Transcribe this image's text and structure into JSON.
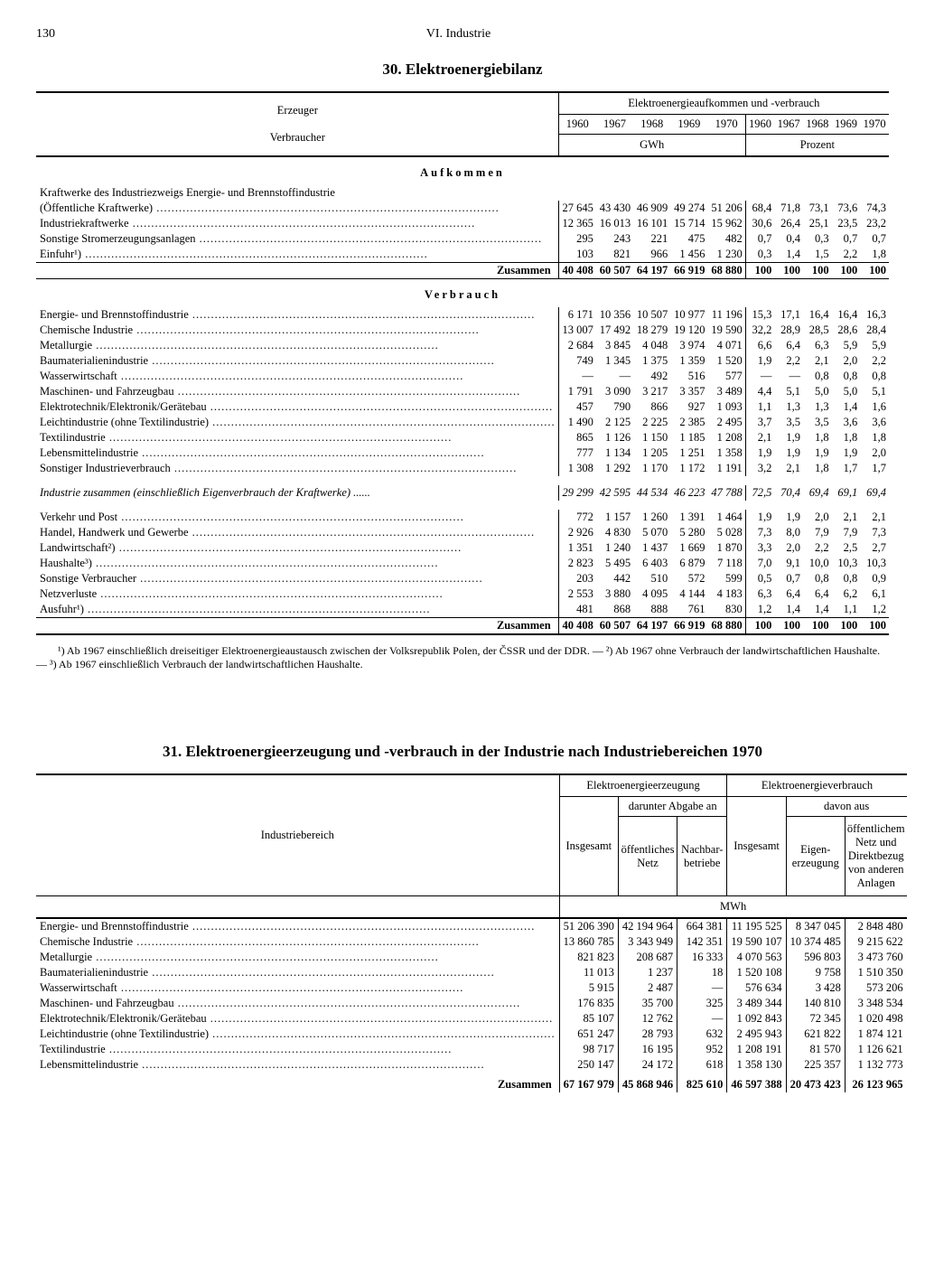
{
  "page_number": "130",
  "chapter": "VI. Industrie",
  "table30": {
    "title": "30. Elektroenergiebilanz",
    "superheader": "Elektroenergieaufkommen und -verbrauch",
    "stub_header_1": "Erzeuger",
    "stub_header_2": "Verbraucher",
    "years": [
      "1960",
      "1967",
      "1968",
      "1969",
      "1970"
    ],
    "unit_left": "GWh",
    "unit_right": "Prozent",
    "section_aufkommen": "Aufkommen",
    "intro_row_label": "Kraftwerke des Industriezweigs Energie- und Brennstoffindustrie",
    "aufkommen_rows": [
      {
        "label": "(Öffentliche Kraftwerke)",
        "gwh": [
          "27 645",
          "43 430",
          "46 909",
          "49 274",
          "51 206"
        ],
        "pct": [
          "68,4",
          "71,8",
          "73,1",
          "73,6",
          "74,3"
        ]
      },
      {
        "label": "Industriekraftwerke",
        "gwh": [
          "12 365",
          "16 013",
          "16 101",
          "15 714",
          "15 962"
        ],
        "pct": [
          "30,6",
          "26,4",
          "25,1",
          "23,5",
          "23,2"
        ]
      },
      {
        "label": "Sonstige Stromerzeugungsanlagen",
        "gwh": [
          "295",
          "243",
          "221",
          "475",
          "482"
        ],
        "pct": [
          "0,7",
          "0,4",
          "0,3",
          "0,7",
          "0,7"
        ]
      },
      {
        "label": "Einfuhr¹)",
        "gwh": [
          "103",
          "821",
          "966",
          "1 456",
          "1 230"
        ],
        "pct": [
          "0,3",
          "1,4",
          "1,5",
          "2,2",
          "1,8"
        ]
      }
    ],
    "aufkommen_sum_label": "Zusammen",
    "aufkommen_sum": {
      "gwh": [
        "40 408",
        "60 507",
        "64 197",
        "66 919",
        "68 880"
      ],
      "pct": [
        "100",
        "100",
        "100",
        "100",
        "100"
      ]
    },
    "section_verbrauch": "Verbrauch",
    "verbrauch_rows_1": [
      {
        "label": "Energie- und Brennstoffindustrie",
        "gwh": [
          "6 171",
          "10 356",
          "10 507",
          "10 977",
          "11 196"
        ],
        "pct": [
          "15,3",
          "17,1",
          "16,4",
          "16,4",
          "16,3"
        ]
      },
      {
        "label": "Chemische Industrie",
        "gwh": [
          "13 007",
          "17 492",
          "18 279",
          "19 120",
          "19 590"
        ],
        "pct": [
          "32,2",
          "28,9",
          "28,5",
          "28,6",
          "28,4"
        ]
      },
      {
        "label": "Metallurgie",
        "gwh": [
          "2 684",
          "3 845",
          "4 048",
          "3 974",
          "4 071"
        ],
        "pct": [
          "6,6",
          "6,4",
          "6,3",
          "5,9",
          "5,9"
        ]
      },
      {
        "label": "Baumaterialienindustrie",
        "gwh": [
          "749",
          "1 345",
          "1 375",
          "1 359",
          "1 520"
        ],
        "pct": [
          "1,9",
          "2,2",
          "2,1",
          "2,0",
          "2,2"
        ]
      },
      {
        "label": "Wasserwirtschaft",
        "gwh": [
          "—",
          "—",
          "492",
          "516",
          "577"
        ],
        "pct": [
          "—",
          "—",
          "0,8",
          "0,8",
          "0,8"
        ]
      },
      {
        "label": "Maschinen- und Fahrzeugbau",
        "gwh": [
          "1 791",
          "3 090",
          "3 217",
          "3 357",
          "3 489"
        ],
        "pct": [
          "4,4",
          "5,1",
          "5,0",
          "5,0",
          "5,1"
        ]
      },
      {
        "label": "Elektrotechnik/Elektronik/Gerätebau",
        "gwh": [
          "457",
          "790",
          "866",
          "927",
          "1 093"
        ],
        "pct": [
          "1,1",
          "1,3",
          "1,3",
          "1,4",
          "1,6"
        ]
      },
      {
        "label": "Leichtindustrie (ohne Textilindustrie)",
        "gwh": [
          "1 490",
          "2 125",
          "2 225",
          "2 385",
          "2 495"
        ],
        "pct": [
          "3,7",
          "3,5",
          "3,5",
          "3,6",
          "3,6"
        ]
      },
      {
        "label": "Textilindustrie",
        "gwh": [
          "865",
          "1 126",
          "1 150",
          "1 185",
          "1 208"
        ],
        "pct": [
          "2,1",
          "1,9",
          "1,8",
          "1,8",
          "1,8"
        ]
      },
      {
        "label": "Lebensmittelindustrie",
        "gwh": [
          "777",
          "1 134",
          "1 205",
          "1 251",
          "1 358"
        ],
        "pct": [
          "1,9",
          "1,9",
          "1,9",
          "1,9",
          "2,0"
        ]
      },
      {
        "label": "Sonstiger Industrieverbrauch",
        "gwh": [
          "1 308",
          "1 292",
          "1 170",
          "1 172",
          "1 191"
        ],
        "pct": [
          "3,2",
          "2,1",
          "1,8",
          "1,7",
          "1,7"
        ]
      }
    ],
    "industrie_sum_label": "Industrie zusammen (einschließlich Eigenverbrauch der Kraftwerke)",
    "industrie_sum": {
      "gwh": [
        "29 299",
        "42 595",
        "44 534",
        "46 223",
        "47 788"
      ],
      "pct": [
        "72,5",
        "70,4",
        "69,4",
        "69,1",
        "69,4"
      ]
    },
    "verbrauch_rows_2": [
      {
        "label": "Verkehr und Post",
        "gwh": [
          "772",
          "1 157",
          "1 260",
          "1 391",
          "1 464"
        ],
        "pct": [
          "1,9",
          "1,9",
          "2,0",
          "2,1",
          "2,1"
        ]
      },
      {
        "label": "Handel, Handwerk und Gewerbe",
        "gwh": [
          "2 926",
          "4 830",
          "5 070",
          "5 280",
          "5 028"
        ],
        "pct": [
          "7,3",
          "8,0",
          "7,9",
          "7,9",
          "7,3"
        ]
      },
      {
        "label": "Landwirtschaft²)",
        "gwh": [
          "1 351",
          "1 240",
          "1 437",
          "1 669",
          "1 870"
        ],
        "pct": [
          "3,3",
          "2,0",
          "2,2",
          "2,5",
          "2,7"
        ]
      },
      {
        "label": "Haushalte³)",
        "gwh": [
          "2 823",
          "5 495",
          "6 403",
          "6 879",
          "7 118"
        ],
        "pct": [
          "7,0",
          "9,1",
          "10,0",
          "10,3",
          "10,3"
        ]
      },
      {
        "label": "Sonstige Verbraucher",
        "gwh": [
          "203",
          "442",
          "510",
          "572",
          "599"
        ],
        "pct": [
          "0,5",
          "0,7",
          "0,8",
          "0,8",
          "0,9"
        ]
      },
      {
        "label": "Netzverluste",
        "gwh": [
          "2 553",
          "3 880",
          "4 095",
          "4 144",
          "4 183"
        ],
        "pct": [
          "6,3",
          "6,4",
          "6,4",
          "6,2",
          "6,1"
        ]
      },
      {
        "label": "Ausfuhr¹)",
        "gwh": [
          "481",
          "868",
          "888",
          "761",
          "830"
        ],
        "pct": [
          "1,2",
          "1,4",
          "1,4",
          "1,1",
          "1,2"
        ]
      }
    ],
    "verbrauch_sum_label": "Zusammen",
    "verbrauch_sum": {
      "gwh": [
        "40 408",
        "60 507",
        "64 197",
        "66 919",
        "68 880"
      ],
      "pct": [
        "100",
        "100",
        "100",
        "100",
        "100"
      ]
    }
  },
  "footnotes": "¹) Ab 1967 einschließlich dreiseitiger Elektroenergieaustausch zwischen der Volksrepublik Polen, der ČSSR und der DDR. — ²) Ab 1967 ohne Verbrauch der landwirtschaftlichen Haushalte. — ³) Ab 1967 einschließlich Verbrauch der landwirtschaftlichen Haushalte.",
  "table31": {
    "title": "31. Elektroenergieerzeugung und -verbrauch in der Industrie nach Industriebereichen 1970",
    "h_erzeugung": "Elektroenergieerzeugung",
    "h_verbrauch": "Elektroenergieverbrauch",
    "h_darunter": "darunter Abgabe an",
    "h_davon": "davon aus",
    "stub_label": "Industriebereich",
    "h_insgesamt": "Insgesamt",
    "h_oeff_netz": "öffentliches Netz",
    "h_nachbar": "Nachbar-\nbetriebe",
    "h_eigen": "Eigen-\nerzeugung",
    "h_oeff_direkt": "öffentlichem Netz und Direktbezug von anderen Anlagen",
    "unit": "MWh",
    "rows": [
      {
        "label": "Energie- und Brennstoffindustrie",
        "v": [
          "51 206 390",
          "42 194 964",
          "664 381",
          "11 195 525",
          "8 347 045",
          "2 848 480"
        ]
      },
      {
        "label": "Chemische Industrie",
        "v": [
          "13 860 785",
          "3 343 949",
          "142 351",
          "19 590 107",
          "10 374 485",
          "9 215 622"
        ]
      },
      {
        "label": "Metallurgie",
        "v": [
          "821 823",
          "208 687",
          "16 333",
          "4 070 563",
          "596 803",
          "3 473 760"
        ]
      },
      {
        "label": "Baumaterialienindustrie",
        "v": [
          "11 013",
          "1 237",
          "18",
          "1 520 108",
          "9 758",
          "1 510 350"
        ]
      },
      {
        "label": "Wasserwirtschaft",
        "v": [
          "5 915",
          "2 487",
          "—",
          "576 634",
          "3 428",
          "573 206"
        ]
      },
      {
        "label": "Maschinen- und Fahrzeugbau",
        "v": [
          "176 835",
          "35 700",
          "325",
          "3 489 344",
          "140 810",
          "3 348 534"
        ]
      },
      {
        "label": "Elektrotechnik/Elektronik/Gerätebau",
        "v": [
          "85 107",
          "12 762",
          "—",
          "1 092 843",
          "72 345",
          "1 020 498"
        ]
      },
      {
        "label": "Leichtindustrie (ohne Textilindustrie)",
        "v": [
          "651 247",
          "28 793",
          "632",
          "2 495 943",
          "621 822",
          "1 874 121"
        ]
      },
      {
        "label": "Textilindustrie",
        "v": [
          "98 717",
          "16 195",
          "952",
          "1 208 191",
          "81 570",
          "1 126 621"
        ]
      },
      {
        "label": "Lebensmittelindustrie",
        "v": [
          "250 147",
          "24 172",
          "618",
          "1 358 130",
          "225 357",
          "1 132 773"
        ]
      }
    ],
    "sum_label": "Zusammen",
    "sum": [
      "67 167 979",
      "45 868 946",
      "825 610",
      "46 597 388",
      "20 473 423",
      "26 123 965"
    ]
  }
}
